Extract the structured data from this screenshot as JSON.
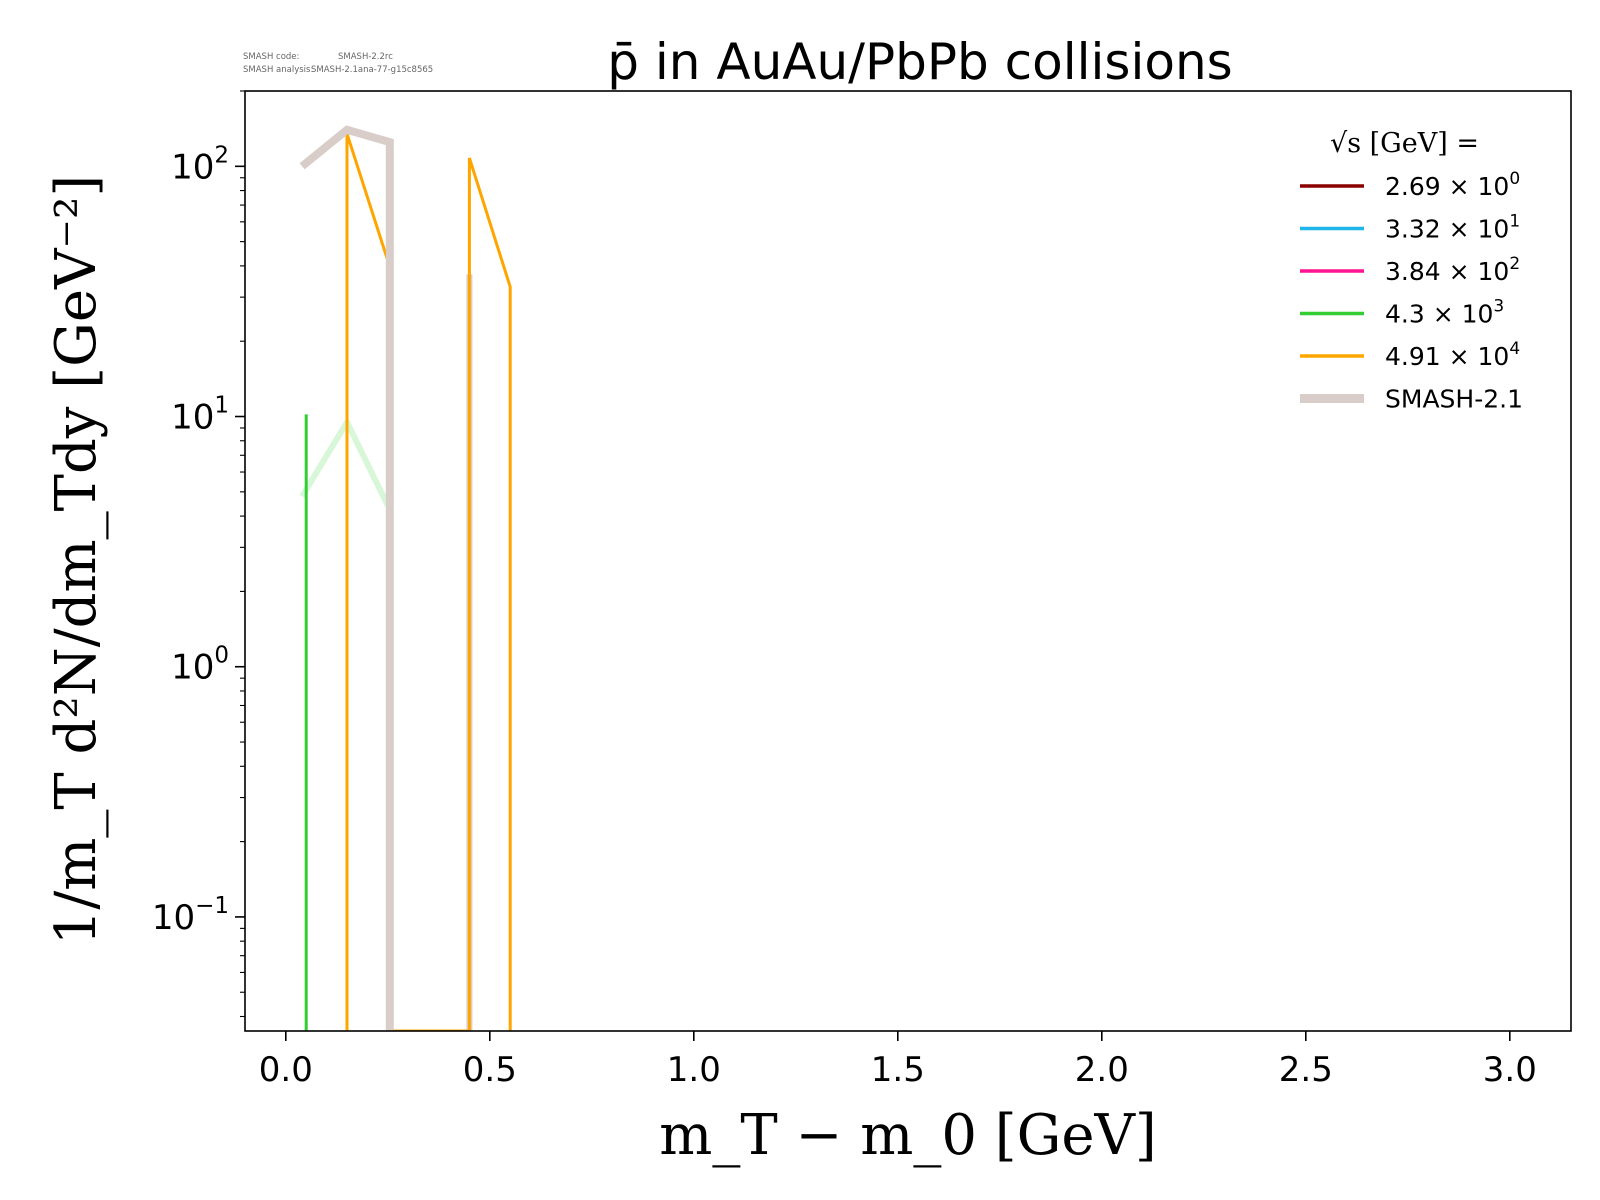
{
  "header": {
    "smash_code_label": "SMASH code:",
    "smash_code_value": "SMASH-2.2rc",
    "smash_analysis_label": "SMASH analysis:",
    "smash_analysis_value": "SMASH-2.1ana-77-g15c8565"
  },
  "chart_data": {
    "type": "line",
    "title": "p̄ in AuAu/PbPb collisions",
    "xlabel": "m_T − m_0 [GeV]",
    "ylabel": "1/m_T d²N/dm_Tdy [GeV⁻²]",
    "xlim": [
      -0.1,
      3.15
    ],
    "ylim": [
      0.035,
      200
    ],
    "yscale": "log",
    "grid": false,
    "legend_placement": "top-right",
    "legend_title": "√s  [GeV] =",
    "x_ticks": [
      {
        "value": 0.0,
        "label": "0.0"
      },
      {
        "value": 0.5,
        "label": "0.5"
      },
      {
        "value": 1.0,
        "label": "1.0"
      },
      {
        "value": 1.5,
        "label": "1.5"
      },
      {
        "value": 2.0,
        "label": "2.0"
      },
      {
        "value": 2.5,
        "label": "2.5"
      },
      {
        "value": 3.0,
        "label": "3.0"
      }
    ],
    "y_ticks": [
      {
        "value": 0.1,
        "mantissa": "10",
        "exp": "−1"
      },
      {
        "value": 1,
        "mantissa": "10",
        "exp": "0"
      },
      {
        "value": 10,
        "mantissa": "10",
        "exp": "1"
      },
      {
        "value": 100,
        "mantissa": "10",
        "exp": "2"
      }
    ],
    "series": [
      {
        "name": "2.69 × 10⁰",
        "base": "2.69",
        "exp": "0",
        "color": "#8b0000",
        "points": []
      },
      {
        "name": "3.32 × 10¹",
        "base": "3.32",
        "exp": "1",
        "color": "#1fb5ea",
        "points": []
      },
      {
        "name": "3.84 × 10²",
        "base": "3.84",
        "exp": "2",
        "color": "#ff1493",
        "points": []
      },
      {
        "name": "4.3 × 10³",
        "base": "4.3",
        "exp": "3",
        "color": "#32cd32",
        "points": [
          [
            0.05,
            0.035
          ],
          [
            0.05,
            10.2
          ],
          [
            0.05,
            0.035
          ]
        ]
      },
      {
        "name": "4.91 × 10⁴",
        "base": "4.91",
        "exp": "4",
        "color": "#ffa500",
        "points": [
          [
            0.15,
            0.035
          ],
          [
            0.15,
            135
          ],
          [
            0.25,
            42
          ],
          [
            0.25,
            0.035
          ],
          [
            0.45,
            0.035
          ],
          [
            0.45,
            108
          ],
          [
            0.55,
            33
          ],
          [
            0.55,
            0.035
          ]
        ]
      },
      {
        "name": "SMASH-2.1",
        "color": "#d8cdc8",
        "points": [
          [
            0.04,
            100
          ],
          [
            0.15,
            140
          ],
          [
            0.255,
            125
          ],
          [
            0.255,
            0.035
          ]
        ]
      }
    ],
    "reference_faint": [
      {
        "color": "#d8f7d8",
        "points": [
          [
            0.04,
            4.8
          ],
          [
            0.15,
            9.5
          ],
          [
            0.25,
            4.4
          ]
        ]
      },
      {
        "color": "#d8cdc8",
        "points": [
          [
            0.45,
            0.035
          ],
          [
            0.45,
            37
          ]
        ]
      }
    ]
  }
}
